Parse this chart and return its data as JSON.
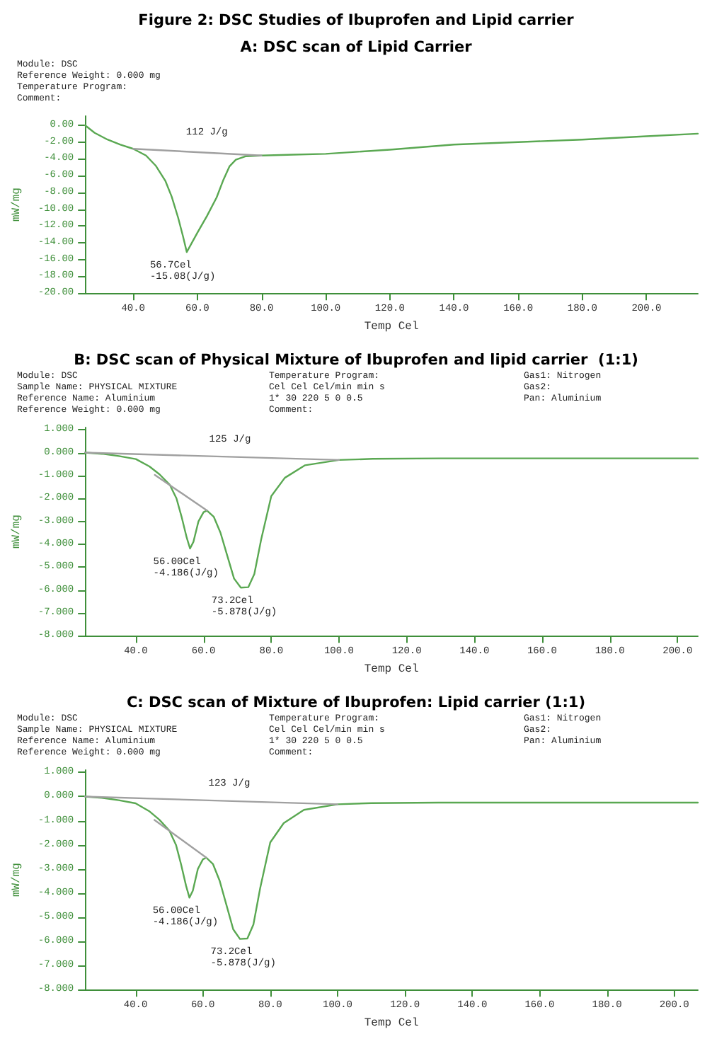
{
  "chart_data": [
    {
      "type": "line",
      "title": "Figure 2: DSC Studies of Ibuprofen and Lipid carrier",
      "subtitle": "A: DSC scan of Lipid Carrier",
      "xlabel": "Temp Cel",
      "ylabel": "mW/mg",
      "xlim": [
        25,
        216
      ],
      "ylim": [
        -20,
        1.1
      ],
      "xticks": [
        {
          "value": 40,
          "label": "40.0"
        },
        {
          "value": 60,
          "label": "60.0"
        },
        {
          "value": 80,
          "label": "80.0"
        },
        {
          "value": 100,
          "label": "100.0"
        },
        {
          "value": 120,
          "label": "120.0"
        },
        {
          "value": 140,
          "label": "140.0"
        },
        {
          "value": 160,
          "label": "160.0"
        },
        {
          "value": 180,
          "label": "180.0"
        },
        {
          "value": 200,
          "label": "200.0"
        }
      ],
      "yticks": [
        {
          "value": 0,
          "label": "0.00"
        },
        {
          "value": -2,
          "label": "-2.00"
        },
        {
          "value": -4,
          "label": "-4.00"
        },
        {
          "value": -6,
          "label": "-6.00"
        },
        {
          "value": -8,
          "label": "-8.00"
        },
        {
          "value": -10,
          "label": "-10.00"
        },
        {
          "value": -12,
          "label": "-12.00"
        },
        {
          "value": -14,
          "label": "-14.00"
        },
        {
          "value": -16,
          "label": "-16.00"
        },
        {
          "value": -18,
          "label": "-18.00"
        },
        {
          "value": -20,
          "label": "-20.00"
        }
      ],
      "grid": false,
      "marker": "none",
      "line_style": "solid",
      "series": [
        {
          "color": "#5aa852",
          "x": [
            25,
            28,
            32,
            36,
            40,
            44,
            47,
            50,
            52,
            54,
            55.5,
            56.7,
            58,
            60,
            63,
            66,
            68,
            70,
            72,
            75,
            80,
            90,
            100,
            120,
            140,
            160,
            180,
            200,
            216
          ],
          "values": [
            0,
            -0.9,
            -1.7,
            -2.3,
            -2.8,
            -3.6,
            -4.8,
            -6.6,
            -8.5,
            -11,
            -13.2,
            -15.1,
            -14.2,
            -12.8,
            -10.8,
            -8.6,
            -6.6,
            -4.9,
            -4.1,
            -3.7,
            -3.6,
            -3.5,
            -3.4,
            -2.9,
            -2.3,
            -2.0,
            -1.7,
            -1.3,
            -1.0
          ]
        },
        {
          "color": "#a0a0a0",
          "x": [
            40,
            80
          ],
          "values": [
            -2.8,
            -3.6
          ]
        }
      ],
      "annotations": [
        {
          "text": "112 J/g",
          "x": 60,
          "y": -2.3
        },
        {
          "text": "56.7Cel\n-15.08(J/g)",
          "x": 56.7,
          "y": -15.1
        },
        "Module: DSC",
        "Reference Weight: 0.000 mg",
        "Temperature Program:",
        "Comment:"
      ]
    },
    {
      "type": "line",
      "title": "B: DSC scan of Physical Mixture of Ibuprofen and lipid carrier  (1:1)",
      "xlabel": "Temp Cel",
      "ylabel": "mW/mg",
      "xlim": [
        25,
        206
      ],
      "ylim": [
        -8,
        1.1
      ],
      "xticks": [
        {
          "value": 40,
          "label": "40.0"
        },
        {
          "value": 60,
          "label": "60.0"
        },
        {
          "value": 80,
          "label": "80.0"
        },
        {
          "value": 100,
          "label": "100.0"
        },
        {
          "value": 120,
          "label": "120.0"
        },
        {
          "value": 140,
          "label": "140.0"
        },
        {
          "value": 160,
          "label": "160.0"
        },
        {
          "value": 180,
          "label": "180.0"
        },
        {
          "value": 200,
          "label": "200.0"
        }
      ],
      "yticks": [
        {
          "value": 1,
          "label": "1.000"
        },
        {
          "value": 0,
          "label": "0.000"
        },
        {
          "value": -1,
          "label": "-1.000"
        },
        {
          "value": -2,
          "label": "-2.000"
        },
        {
          "value": -3,
          "label": "-3.000"
        },
        {
          "value": -4,
          "label": "-4.000"
        },
        {
          "value": -5,
          "label": "-5.000"
        },
        {
          "value": -6,
          "label": "-6.000"
        },
        {
          "value": -7,
          "label": "-7.000"
        },
        {
          "value": -8,
          "label": "-8.000"
        }
      ],
      "grid": false,
      "marker": "none",
      "line_style": "solid",
      "series": [
        {
          "color": "#5aa852",
          "x": [
            25,
            30,
            35,
            40,
            44,
            47,
            50,
            52,
            53.5,
            55,
            56,
            57,
            58.5,
            60,
            61,
            63,
            65,
            67,
            69,
            71,
            73.2,
            75,
            77,
            80,
            84,
            90,
            100,
            110,
            130,
            160,
            206
          ],
          "values": [
            0,
            -0.05,
            -0.15,
            -0.28,
            -0.6,
            -0.95,
            -1.4,
            -2.0,
            -2.8,
            -3.7,
            -4.19,
            -3.9,
            -3.0,
            -2.6,
            -2.53,
            -2.8,
            -3.5,
            -4.5,
            -5.5,
            -5.9,
            -5.88,
            -5.3,
            -3.8,
            -1.9,
            -1.1,
            -0.55,
            -0.32,
            -0.27,
            -0.25,
            -0.25,
            -0.25
          ]
        },
        {
          "color": "#a0a0a0",
          "x": [
            25,
            100
          ],
          "values": [
            0,
            -0.32
          ]
        },
        {
          "color": "#a0a0a0",
          "x": [
            45.6,
            61
          ],
          "values": [
            -0.97,
            -2.53
          ]
        }
      ],
      "annotations": [
        {
          "text": "125 J/g",
          "x": 65,
          "y": 0.05
        },
        {
          "text": "56.00Cel\n-4.186(J/g)",
          "x": 56,
          "y": -4.19
        },
        {
          "text": "73.2Cel\n-5.878(J/g)",
          "x": 73.2,
          "y": -5.88
        },
        "Module: DSC",
        "Sample Name: PHYSICAL MIXTURE",
        "Reference Name: Aluminium",
        "Reference Weight: 0.000 mg",
        "Temperature Program:",
        "Cel Cel Cel/min min s",
        "1* 30 220 5 0 0.5",
        "Comment:",
        "Gas1: Nitrogen",
        "Gas2:",
        "Pan: Aluminium"
      ]
    },
    {
      "type": "line",
      "title": "C: DSC scan of Mixture of Ibuprofen: Lipid carrier (1:1)",
      "xlabel": "Temp Cel",
      "ylabel": "mW/mg",
      "xlim": [
        25,
        207
      ],
      "ylim": [
        -8,
        1.1
      ],
      "xticks": [
        {
          "value": 40,
          "label": "40.0"
        },
        {
          "value": 60,
          "label": "60.0"
        },
        {
          "value": 80,
          "label": "80.0"
        },
        {
          "value": 100,
          "label": "100.0"
        },
        {
          "value": 120,
          "label": "120.0"
        },
        {
          "value": 140,
          "label": "140.0"
        },
        {
          "value": 160,
          "label": "160.0"
        },
        {
          "value": 180,
          "label": "180.0"
        },
        {
          "value": 200,
          "label": "200.0"
        }
      ],
      "yticks": [
        {
          "value": 1,
          "label": "1.000"
        },
        {
          "value": 0,
          "label": "0.000"
        },
        {
          "value": -1,
          "label": "-1.000"
        },
        {
          "value": -2,
          "label": "-2.000"
        },
        {
          "value": -3,
          "label": "-3.000"
        },
        {
          "value": -4,
          "label": "-4.000"
        },
        {
          "value": -5,
          "label": "-5.000"
        },
        {
          "value": -6,
          "label": "-6.000"
        },
        {
          "value": -7,
          "label": "-7.000"
        },
        {
          "value": -8,
          "label": "-8.000"
        }
      ],
      "grid": false,
      "marker": "none",
      "line_style": "solid",
      "series": [
        {
          "color": "#5aa852",
          "x": [
            25,
            30,
            35,
            40,
            44,
            47,
            50,
            52,
            53.5,
            55,
            56,
            57,
            58.5,
            60,
            61,
            63,
            65,
            67,
            69,
            71,
            73.2,
            75,
            77,
            80,
            84,
            90,
            100,
            110,
            130,
            160,
            207
          ],
          "values": [
            0,
            -0.05,
            -0.15,
            -0.28,
            -0.6,
            -0.95,
            -1.4,
            -2.0,
            -2.8,
            -3.7,
            -4.19,
            -3.9,
            -3.0,
            -2.6,
            -2.53,
            -2.8,
            -3.5,
            -4.5,
            -5.5,
            -5.9,
            -5.88,
            -5.3,
            -3.8,
            -1.9,
            -1.1,
            -0.55,
            -0.32,
            -0.27,
            -0.25,
            -0.25,
            -0.25
          ]
        },
        {
          "color": "#a0a0a0",
          "x": [
            25,
            100
          ],
          "values": [
            0,
            -0.32
          ]
        },
        {
          "color": "#a0a0a0",
          "x": [
            45.6,
            61
          ],
          "values": [
            -0.97,
            -2.53
          ]
        }
      ],
      "annotations": [
        {
          "text": "123 J/g",
          "x": 65,
          "y": 0.05
        },
        {
          "text": "56.00Cel\n-4.186(J/g)",
          "x": 56,
          "y": -4.19
        },
        {
          "text": "73.2Cel\n-5.878(J/g)",
          "x": 73.2,
          "y": -5.88
        },
        "Module: DSC",
        "Sample Name: PHYSICAL MIXTURE",
        "Reference Name: Aluminium",
        "Reference Weight: 0.000 mg",
        "Temperature Program:",
        "Cel Cel Cel/min min s",
        "1* 30 220 5 0 0.5",
        "Comment:",
        "Gas1: Nitrogen",
        "Gas2:",
        "Pan: Aluminium"
      ]
    }
  ]
}
